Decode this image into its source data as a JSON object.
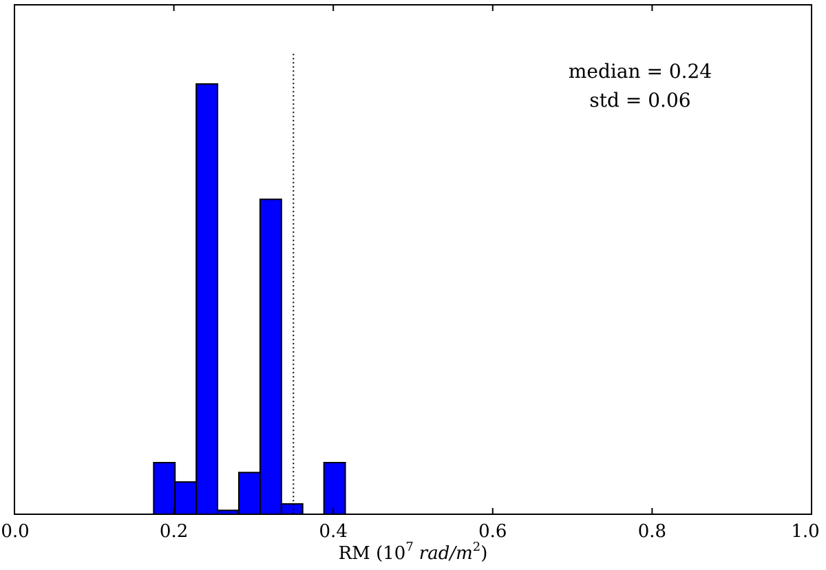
{
  "chart_data": {
    "type": "bar",
    "title": "",
    "xlabel": {
      "prefix": "RM (10",
      "exponent": "7",
      "unit_main": "rad/m",
      "unit_exponent": "2",
      "suffix": ")"
    },
    "ylabel": "",
    "xlim": [
      0.0,
      1.0
    ],
    "y_ticks_shown": false,
    "grid": false,
    "x_ticks": [
      {
        "value": 0.0,
        "label": "0.0"
      },
      {
        "value": 0.2,
        "label": "0.2"
      },
      {
        "value": 0.4,
        "label": "0.4"
      },
      {
        "value": 0.6,
        "label": "0.6"
      },
      {
        "value": 0.8,
        "label": "0.8"
      },
      {
        "value": 1.0,
        "label": "1.0"
      }
    ],
    "bin_width": 0.0267,
    "bins": [
      {
        "start": 0.1747,
        "height": 0.12
      },
      {
        "start": 0.2014,
        "height": 0.075
      },
      {
        "start": 0.2281,
        "height": 1.0
      },
      {
        "start": 0.2548,
        "height": 0.009
      },
      {
        "start": 0.2815,
        "height": 0.097
      },
      {
        "start": 0.3082,
        "height": 0.732
      },
      {
        "start": 0.3349,
        "height": 0.024
      },
      {
        "start": 0.3883,
        "height": 0.12
      }
    ],
    "vline": {
      "x": 0.35,
      "style": "dotted",
      "top": 1.07
    },
    "annotation": [
      "median = 0.24",
      "std = 0.06"
    ],
    "colors": {
      "bar_fill": "#0000ff",
      "bar_edge": "#000000",
      "axes": "#000000"
    }
  }
}
